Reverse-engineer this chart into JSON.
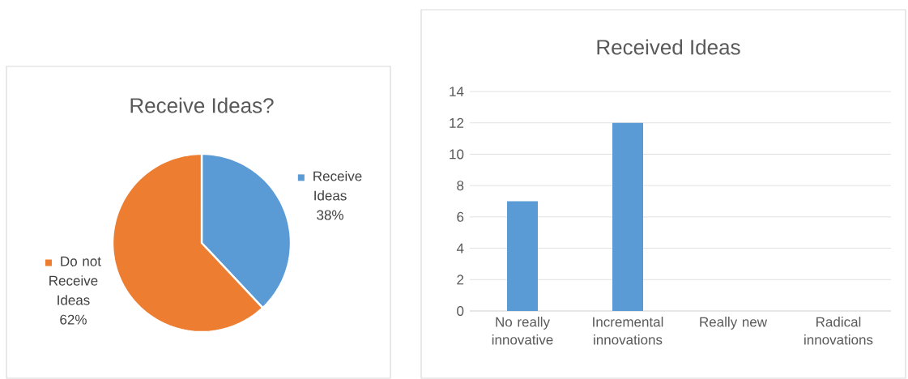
{
  "chart_data": [
    {
      "type": "pie",
      "title": "Receive Ideas?",
      "categories": [
        "Receive Ideas",
        "Do not Receive Ideas"
      ],
      "values": [
        38,
        62
      ],
      "colors": [
        "#5b9bd5",
        "#ed7d31"
      ],
      "value_labels": [
        "38%",
        "62%"
      ],
      "legend": "right"
    },
    {
      "type": "bar",
      "title": "Received Ideas",
      "categories": [
        "No really innovative",
        "Incremental innovations",
        "Really new",
        "Radical innovations"
      ],
      "values": [
        7,
        12,
        0,
        0
      ],
      "color": "#5b9bd5",
      "ylim": [
        0,
        14
      ],
      "yticks": [
        0,
        2,
        4,
        6,
        8,
        10,
        12,
        14
      ],
      "grid": "y"
    }
  ]
}
